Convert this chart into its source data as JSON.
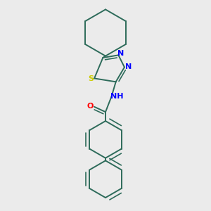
{
  "background_color": "#ebebeb",
  "bond_color": "#2d6b5a",
  "S_color": "#cccc00",
  "N_color": "#0000ff",
  "O_color": "#ff0000",
  "line_width": 1.4,
  "figsize": [
    3.0,
    3.0
  ],
  "dpi": 100,
  "xlim": [
    -0.55,
    0.75
  ],
  "ylim": [
    -1.25,
    1.2
  ]
}
